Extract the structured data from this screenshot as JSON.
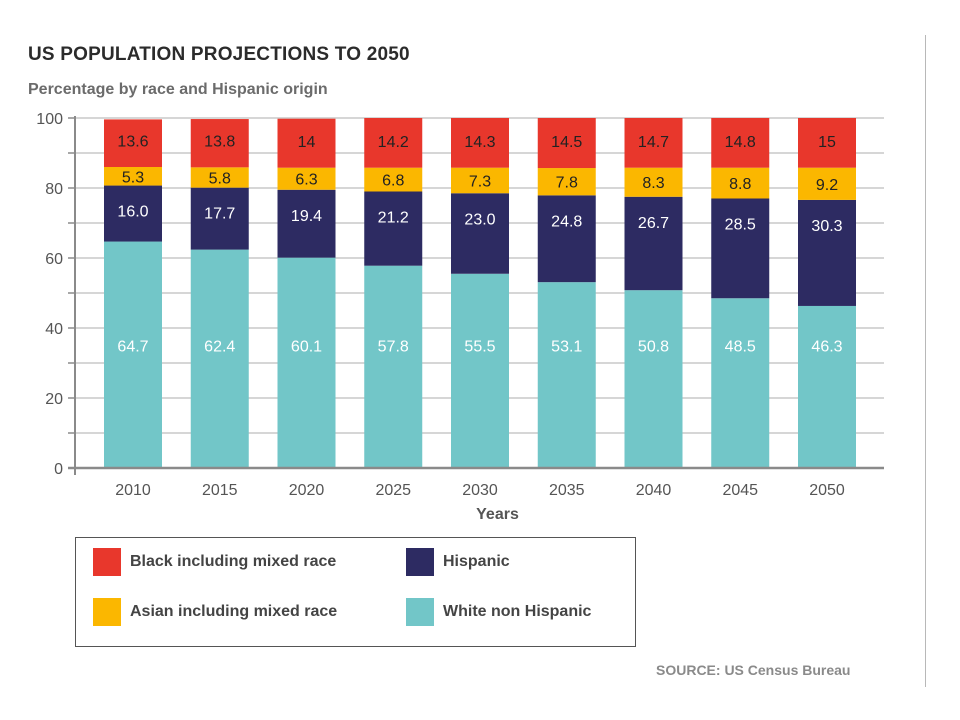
{
  "title": "US POPULATION PROJECTIONS TO 2050",
  "subtitle": "Percentage by race and Hispanic origin",
  "source": "SOURCE: US Census Bureau",
  "chart_data": {
    "type": "bar",
    "stacked": true,
    "xlabel": "Years",
    "ylabel": "",
    "ylim": [
      0,
      100
    ],
    "yticks": [
      0,
      20,
      40,
      60,
      80,
      100
    ],
    "grid": true,
    "legend_position": "bottom-left",
    "categories": [
      "2010",
      "2015",
      "2020",
      "2025",
      "2030",
      "2035",
      "2040",
      "2045",
      "2050"
    ],
    "series": [
      {
        "name": "White non Hispanic",
        "color": "#72c6c8",
        "label_color": "#ffffff",
        "values": [
          64.7,
          62.4,
          60.1,
          57.8,
          55.5,
          53.1,
          50.8,
          48.5,
          46.3
        ],
        "labels": [
          "64.7",
          "62.4",
          "60.1",
          "57.8",
          "55.5",
          "53.1",
          "50.8",
          "48.5",
          "46.3"
        ]
      },
      {
        "name": "Hispanic",
        "color": "#2d2b62",
        "label_color": "#ffffff",
        "values": [
          16.0,
          17.7,
          19.4,
          21.2,
          23.0,
          24.8,
          26.7,
          28.5,
          30.3
        ],
        "labels": [
          "16.0",
          "17.7",
          "19.4",
          "21.2",
          "23.0",
          "24.8",
          "26.7",
          "28.5",
          "30.3"
        ]
      },
      {
        "name": "Asian including mixed race",
        "color": "#fbb700",
        "label_color": "#222222",
        "values": [
          5.3,
          5.8,
          6.3,
          6.8,
          7.3,
          7.8,
          8.3,
          8.8,
          9.2
        ],
        "labels": [
          "5.3",
          "5.8",
          "6.3",
          "6.8",
          "7.3",
          "7.8",
          "8.3",
          "8.8",
          "9.2"
        ]
      },
      {
        "name": "Black including mixed race",
        "color": "#e8372c",
        "label_color": "#222222",
        "values": [
          13.6,
          13.8,
          14,
          14.2,
          14.3,
          14.5,
          14.7,
          14.8,
          15
        ],
        "labels": [
          "13.6",
          "13.8",
          "14",
          "14.2",
          "14.3",
          "14.5",
          "14.7",
          "14.8",
          "15"
        ]
      }
    ],
    "legend": [
      {
        "series": "Black including mixed race",
        "color": "#e8372c"
      },
      {
        "series": "Hispanic",
        "color": "#2d2b62"
      },
      {
        "series": "Asian including mixed race",
        "color": "#fbb700"
      },
      {
        "series": "White non Hispanic",
        "color": "#72c6c8"
      }
    ]
  }
}
